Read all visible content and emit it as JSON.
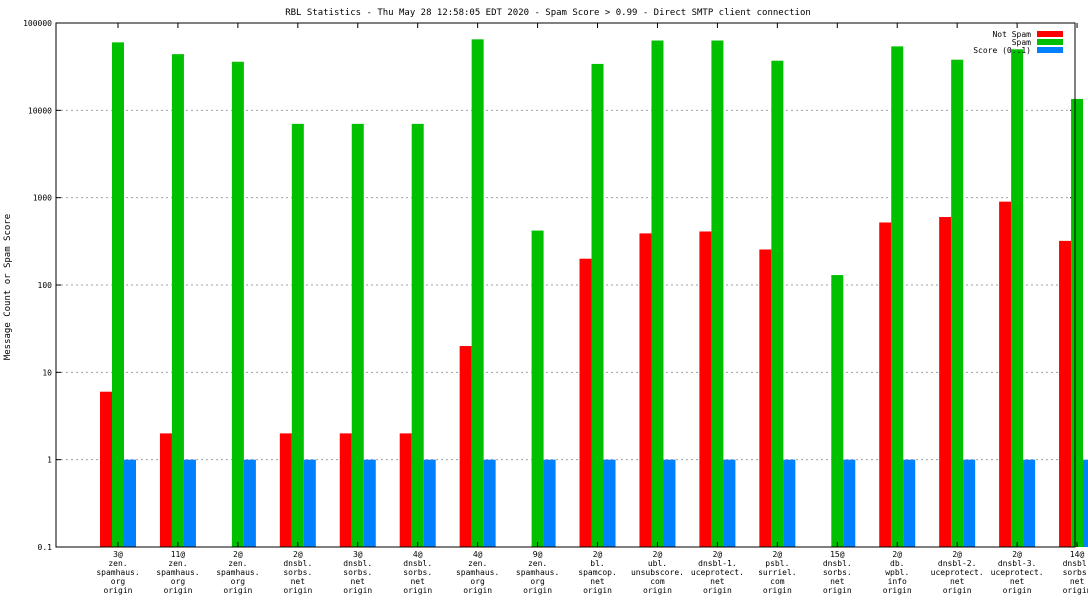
{
  "chart_data": {
    "type": "bar",
    "title": "RBL Statistics - Thu May 28 12:58:05 EDT 2020 - Spam Score > 0.99 - Direct SMTP client connection",
    "ylabel": "Message Count or Spam Score",
    "xlabel": "",
    "yscale": "log",
    "ylim": [
      0.1,
      100000
    ],
    "yticks": [
      "0.1",
      "1",
      "10",
      "100",
      "1000",
      "10000",
      "100000"
    ],
    "grid": true,
    "legend_position": "top-right",
    "categories": [
      [
        "3@",
        "zen.",
        "spamhaus.",
        "org",
        "origin"
      ],
      [
        "11@",
        "zen.",
        "spamhaus.",
        "org",
        "origin"
      ],
      [
        "2@",
        "zen.",
        "spamhaus.",
        "org",
        "origin"
      ],
      [
        "2@",
        "dnsbl.",
        "sorbs.",
        "net",
        "origin"
      ],
      [
        "3@",
        "dnsbl.",
        "sorbs.",
        "net",
        "origin"
      ],
      [
        "4@",
        "dnsbl.",
        "sorbs.",
        "net",
        "origin"
      ],
      [
        "4@",
        "zen.",
        "spamhaus.",
        "org",
        "origin"
      ],
      [
        "9@",
        "zen.",
        "spamhaus.",
        "org",
        "origin"
      ],
      [
        "2@",
        "bl.",
        "spamcop.",
        "net",
        "origin"
      ],
      [
        "2@",
        "ubl.",
        "unsubscore.",
        "com",
        "origin"
      ],
      [
        "2@",
        "dnsbl-1.",
        "uceprotect.",
        "net",
        "origin"
      ],
      [
        "2@",
        "psbl.",
        "surriel.",
        "com",
        "origin"
      ],
      [
        "15@",
        "dnsbl.",
        "sorbs.",
        "net",
        "origin"
      ],
      [
        "2@",
        "db.",
        "wpbl.",
        "info",
        "origin"
      ],
      [
        "2@",
        "dnsbl-2.",
        "uceprotect.",
        "net",
        "origin"
      ],
      [
        "2@",
        "dnsbl-3.",
        "uceprotect.",
        "net",
        "origin"
      ],
      [
        "14@",
        "dnsbl.",
        "sorbs.",
        "net",
        "origin"
      ]
    ],
    "series": [
      {
        "name": "Not Spam",
        "color": "#ff0000",
        "values": [
          6,
          2,
          null,
          2,
          2,
          2,
          20,
          null,
          200,
          390,
          410,
          255,
          null,
          520,
          600,
          900,
          320
        ]
      },
      {
        "name": "Spam",
        "color": "#00c000",
        "values": [
          60000,
          44000,
          36000,
          7000,
          7000,
          7000,
          65000,
          420,
          34000,
          63000,
          63000,
          37000,
          130,
          54000,
          38000,
          50000,
          13500
        ]
      },
      {
        "name": "Score (0..1)",
        "color": "#0080ff",
        "values": [
          1,
          1,
          1,
          1,
          1,
          1,
          1,
          1,
          1,
          1,
          1,
          1,
          1,
          1,
          1,
          1,
          1
        ]
      }
    ]
  }
}
